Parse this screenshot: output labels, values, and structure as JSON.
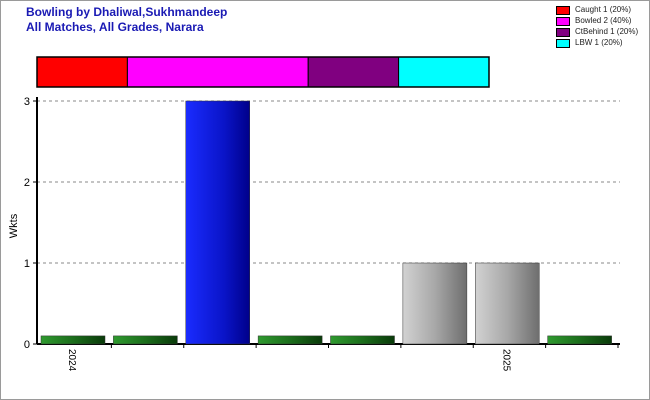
{
  "titles": {
    "line1": "Bowling by Dhaliwal,Sukhmandeep",
    "line2": "All Matches, All Grades, Narara"
  },
  "legend": [
    {
      "label": "Caught 1 (20%)",
      "color": "#ff0000"
    },
    {
      "label": "Bowled 2 (40%)",
      "color": "#ff00ff"
    },
    {
      "label": "CtBehind 1 (20%)",
      "color": "#800080"
    },
    {
      "label": "LBW 1 (20%)",
      "color": "#00ffff"
    }
  ],
  "chart_data": {
    "type": "bar",
    "title": "Bowling by Dhaliwal,Sukhmandeep",
    "subtitle": "All Matches, All Grades, Narara",
    "ylabel": "Wkts",
    "xlabel": "",
    "ylim": [
      0,
      3
    ],
    "yticks": [
      "0",
      "1",
      "2",
      "3"
    ],
    "grid": true,
    "legend_position": "top-right",
    "dismissal_breakdown": {
      "type": "stacked-bar",
      "segments": [
        {
          "name": "Caught",
          "count": 1,
          "percent": 20,
          "color": "#ff0000"
        },
        {
          "name": "Bowled",
          "count": 2,
          "percent": 40,
          "color": "#ff00ff"
        },
        {
          "name": "CtBehind",
          "count": 1,
          "percent": 20,
          "color": "#800080"
        },
        {
          "name": "LBW",
          "count": 1,
          "percent": 20,
          "color": "#00ffff"
        }
      ]
    },
    "bars": [
      {
        "value": 0.1,
        "style": "green"
      },
      {
        "value": 0.1,
        "style": "green"
      },
      {
        "value": 3,
        "style": "blue"
      },
      {
        "value": 0.1,
        "style": "green"
      },
      {
        "value": 0.1,
        "style": "green"
      },
      {
        "value": 1,
        "style": "grey"
      },
      {
        "value": 1,
        "style": "grey"
      },
      {
        "value": 0.1,
        "style": "green"
      }
    ],
    "x_labels": [
      {
        "bar_index": 0,
        "label": "2024"
      },
      {
        "bar_index": 6,
        "label": "2025"
      }
    ]
  }
}
